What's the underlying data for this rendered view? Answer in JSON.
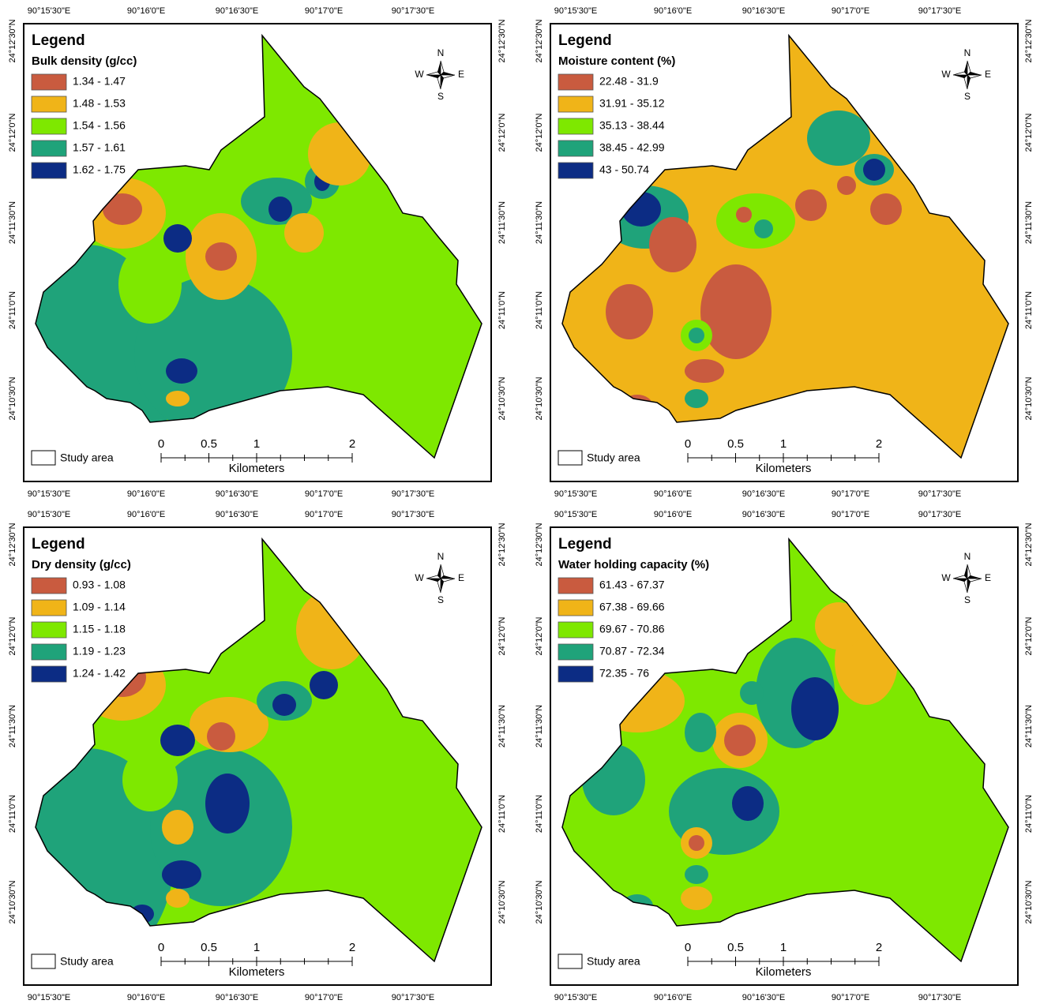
{
  "panels": [
    {
      "legend_title": "Legend",
      "layer_title": "Bulk density (g/cc)",
      "classes": [
        {
          "label": "1.34 - 1.47",
          "color": "#c95b3f"
        },
        {
          "label": "1.48 - 1.53",
          "color": "#f0b418"
        },
        {
          "label": "1.54 - 1.56",
          "color": "#7ee800"
        },
        {
          "label": "1.57 - 1.61",
          "color": "#1fa37a"
        },
        {
          "label": "1.62 - 1.75",
          "color": "#0c2c84"
        }
      ],
      "study_area": "Study area",
      "scale_ticks": [
        0,
        0.5,
        1,
        2
      ],
      "scale_unit": "Kilometers",
      "compass": {
        "n": "N",
        "s": "S",
        "e": "E",
        "w": "W"
      },
      "x_labels": [
        "90°15'30\"E",
        "90°16'0\"E",
        "90°16'30\"E",
        "90°17'0\"E",
        "90°17'30\"E"
      ],
      "y_labels": [
        "24°12'30\"N",
        "24°12'0\"N",
        "24°11'30\"N",
        "24°11'0\"N",
        "24°10'30\"N"
      ]
    },
    {
      "legend_title": "Legend",
      "layer_title": "Moisture content (%)",
      "classes": [
        {
          "label": "22.48 - 31.9",
          "color": "#c95b3f"
        },
        {
          "label": "31.91 - 35.12",
          "color": "#f0b418"
        },
        {
          "label": "35.13 - 38.44",
          "color": "#7ee800"
        },
        {
          "label": "38.45 - 42.99",
          "color": "#1fa37a"
        },
        {
          "label": "43 - 50.74",
          "color": "#0c2c84"
        }
      ],
      "study_area": "Study area",
      "scale_ticks": [
        0,
        0.5,
        1,
        2
      ],
      "scale_unit": "Kilometers",
      "compass": {
        "n": "N",
        "s": "S",
        "e": "E",
        "w": "W"
      },
      "x_labels": [
        "90°15'30\"E",
        "90°16'0\"E",
        "90°16'30\"E",
        "90°17'0\"E",
        "90°17'30\"E"
      ],
      "y_labels": [
        "24°12'30\"N",
        "24°12'0\"N",
        "24°11'30\"N",
        "24°11'0\"N",
        "24°10'30\"N"
      ]
    },
    {
      "legend_title": "Legend",
      "layer_title": "Dry density (g/cc)",
      "classes": [
        {
          "label": "0.93 - 1.08",
          "color": "#c95b3f"
        },
        {
          "label": "1.09 - 1.14",
          "color": "#f0b418"
        },
        {
          "label": "1.15 - 1.18",
          "color": "#7ee800"
        },
        {
          "label": "1.19 - 1.23",
          "color": "#1fa37a"
        },
        {
          "label": "1.24 - 1.42",
          "color": "#0c2c84"
        }
      ],
      "study_area": "Study area",
      "scale_ticks": [
        0,
        0.5,
        1,
        2
      ],
      "scale_unit": "Kilometers",
      "compass": {
        "n": "N",
        "s": "S",
        "e": "E",
        "w": "W"
      },
      "x_labels": [
        "90°15'30\"E",
        "90°16'0\"E",
        "90°16'30\"E",
        "90°17'0\"E",
        "90°17'30\"E"
      ],
      "y_labels": [
        "24°12'30\"N",
        "24°12'0\"N",
        "24°11'30\"N",
        "24°11'0\"N",
        "24°10'30\"N"
      ]
    },
    {
      "legend_title": "Legend",
      "layer_title": "Water holding capacity (%)",
      "classes": [
        {
          "label": "61.43 - 67.37",
          "color": "#c95b3f"
        },
        {
          "label": "67.38 - 69.66",
          "color": "#f0b418"
        },
        {
          "label": "69.67 - 70.86",
          "color": "#7ee800"
        },
        {
          "label": "70.87 - 72.34",
          "color": "#1fa37a"
        },
        {
          "label": "72.35 - 76",
          "color": "#0c2c84"
        }
      ],
      "study_area": "Study area",
      "scale_ticks": [
        0,
        0.5,
        1,
        2
      ],
      "scale_unit": "Kilometers",
      "compass": {
        "n": "N",
        "s": "S",
        "e": "E",
        "w": "W"
      },
      "x_labels": [
        "90°15'30\"E",
        "90°16'0\"E",
        "90°16'30\"E",
        "90°17'0\"E",
        "90°17'30\"E"
      ],
      "y_labels": [
        "24°12'30\"N",
        "24°12'0\"N",
        "24°11'30\"N",
        "24°11'0\"N",
        "24°10'30\"N"
      ]
    }
  ]
}
